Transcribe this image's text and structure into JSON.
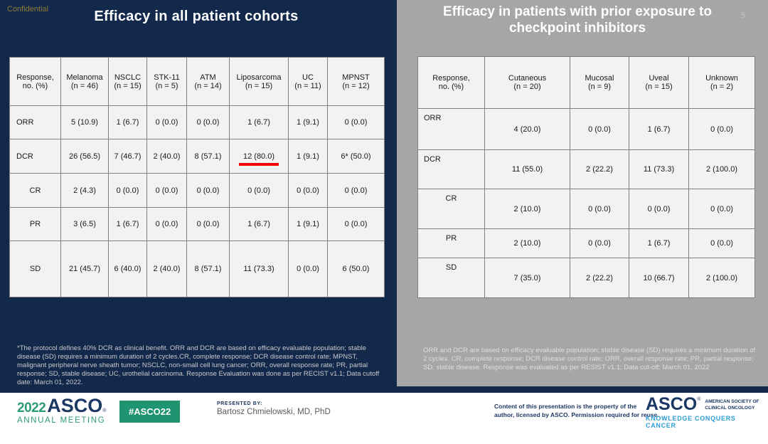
{
  "confidential": "Confidential",
  "page_number": "5",
  "left_panel": {
    "title": "Efficacy in all patient cohorts",
    "table": {
      "header": [
        "Response,\nno. (%)",
        "Melanoma\n(n = 46)",
        "NSCLC\n(n = 15)",
        "STK-11\n(n = 5)",
        "ATM\n(n = 14)",
        "Liposarcoma\n(n = 15)",
        "UC\n(n = 11)",
        "MPNST\n(n = 12)"
      ],
      "rows": [
        {
          "label": "ORR",
          "values": [
            "5 (10.9)",
            "1 (6.7)",
            "0 (0.0)",
            "0 (0.0)",
            "1 (6.7)",
            "1 (9.1)",
            "0 (0.0)"
          ]
        },
        {
          "label": "DCR",
          "values": [
            "26 (56.5)",
            "7 (46.7)",
            "2 (40.0)",
            "8 (57.1)",
            "12 (80.0)",
            "1 (9.1)",
            "6* (50.0)"
          ],
          "underline_value_index": 4
        },
        {
          "label": "CR",
          "values": [
            "2 (4.3)",
            "0 (0.0)",
            "0 (0.0)",
            "0 (0.0)",
            "0 (0.0)",
            "0 (0.0)",
            "0 (0.0)"
          ]
        },
        {
          "label": "PR",
          "values": [
            "3 (6.5)",
            "1 (6.7)",
            "0 (0.0)",
            "0 (0.0)",
            "1 (6.7)",
            "1 (9.1)",
            "0 (0.0)"
          ]
        },
        {
          "label": "SD",
          "values": [
            "21 (45.7)",
            "6 (40.0)",
            "2 (40.0)",
            "8 (57.1)",
            "11 (73.3)",
            "0 (0.0)",
            "6 (50.0)"
          ]
        }
      ]
    },
    "footnote": "*The protocol defines 40% DCR as clinical benefit. ORR and DCR are based on efficacy evaluable population; stable disease (SD) requires a minimum duration of 2 cycles.CR, complete response; DCR disease control rate; MPNST, malignant peripheral nerve sheath tumor; NSCLC, non-small cell lung cancer; ORR, overall response rate; PR, partial response; SD, stable disease; UC, urothelial carcinoma. Response Evaluation was done as per RECIST v1.1; Data cutoff date: March 01, 2022."
  },
  "right_panel": {
    "title": "Efficacy in patients with prior exposure to\ncheckpoint inhibitors",
    "table": {
      "header": [
        "Response,\nno. (%)",
        "Cutaneous\n(n = 20)",
        "Mucosal\n(n = 9)",
        "Uveal\n(n = 15)",
        "Unknown\n(n = 2)"
      ],
      "rows": [
        {
          "label": "ORR",
          "values": [
            "4 (20.0)",
            "0 (0.0)",
            "1 (6.7)",
            "0 (0.0)"
          ]
        },
        {
          "label": "DCR",
          "values": [
            "11 (55.0)",
            "2 (22.2)",
            "11 (73.3)",
            "2 (100.0)"
          ]
        },
        {
          "label": "CR",
          "values": [
            "2 (10.0)",
            "0 (0.0)",
            "0 (0.0)",
            "0 (0.0)"
          ]
        },
        {
          "label": "PR",
          "values": [
            "2 (10.0)",
            "0 (0.0)",
            "1 (6.7)",
            "0 (0.0)"
          ]
        },
        {
          "label": "SD",
          "values": [
            "7 (35.0)",
            "2 (22.2)",
            "10 (66.7)",
            "2 (100.0)"
          ]
        }
      ]
    },
    "footnote": "ORR and DCR are based on efficacy evaluable population; stable disease (SD) requires a minimum duration of 2 cycles. CR, complete response; DCR disease control rate; ORR, overall response rate; PR, partial response; SD, stable disease. Response was evaluated as per RESIST v1.1; Data cut-off: March 01, 2022"
  },
  "footer": {
    "meeting_logo": {
      "year": "2022",
      "asco": "ASCO",
      "reg": "®",
      "annual": "ANNUAL MEETING"
    },
    "hashtag": "#ASCO22",
    "presented_by_label": "PRESENTED  BY:",
    "presenter": "Bartosz Chmielowski,  MD, PhD",
    "permission": "Content of this presentation is the property of the\nauthor, licensed by ASCO. Permission required for reuse.",
    "asco_logo": {
      "name": "ASCO",
      "reg": "®",
      "society": "AMERICAN SOCIETY OF\nCLINICAL ONCOLOGY",
      "tagline": "KNOWLEDGE CONQUERS CANCER"
    }
  },
  "colors": {
    "navy_background": "#13294B",
    "gray_background": "#A6A6A6",
    "table_cell_background": "#F2F2F2",
    "underline_red": "#FE0000",
    "confidential_gold": "#8F7D35",
    "brand_green": "#1E9470",
    "brand_navy": "#1B3763",
    "tagline_blue": "#2D9FD8"
  }
}
